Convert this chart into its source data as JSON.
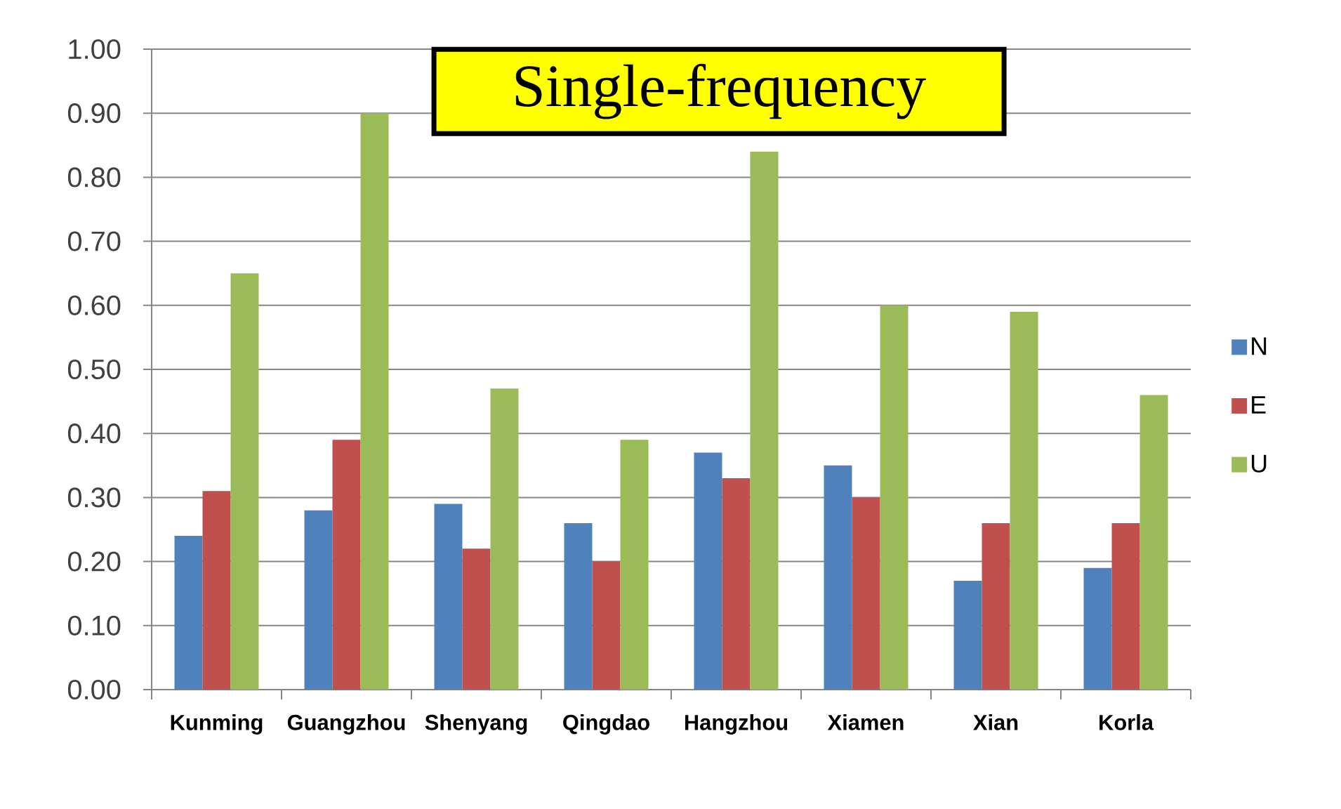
{
  "chart_data": {
    "type": "bar",
    "title": "Single-frequency",
    "categories": [
      "Kunming",
      "Guangzhou",
      "Shenyang",
      "Qingdao",
      "Hangzhou",
      "Xiamen",
      "Xian",
      "Korla"
    ],
    "series": [
      {
        "name": "N",
        "color": "#4f81bd",
        "values": [
          0.24,
          0.28,
          0.29,
          0.26,
          0.37,
          0.35,
          0.17,
          0.19
        ]
      },
      {
        "name": "E",
        "color": "#c0504d",
        "values": [
          0.31,
          0.39,
          0.22,
          0.2,
          0.33,
          0.3,
          0.26,
          0.26
        ]
      },
      {
        "name": "U",
        "color": "#9bbb59",
        "values": [
          0.65,
          0.9,
          0.47,
          0.39,
          0.84,
          0.6,
          0.59,
          0.46
        ]
      }
    ],
    "ylim": [
      0,
      1
    ],
    "yticks": [
      {
        "value": 0,
        "label": "0.00"
      },
      {
        "value": 0.1,
        "label": "0.10"
      },
      {
        "value": 0.2,
        "label": "0.20"
      },
      {
        "value": 0.3,
        "label": "0.30"
      },
      {
        "value": 0.4,
        "label": "0.40"
      },
      {
        "value": 0.5,
        "label": "0.50"
      },
      {
        "value": 0.6,
        "label": "0.60"
      },
      {
        "value": 0.7,
        "label": "0.70"
      },
      {
        "value": 0.8,
        "label": "0.80"
      },
      {
        "value": 0.9,
        "label": "0.90"
      },
      {
        "value": 1,
        "label": "1.00"
      }
    ],
    "grid": "y",
    "legend": "right"
  }
}
